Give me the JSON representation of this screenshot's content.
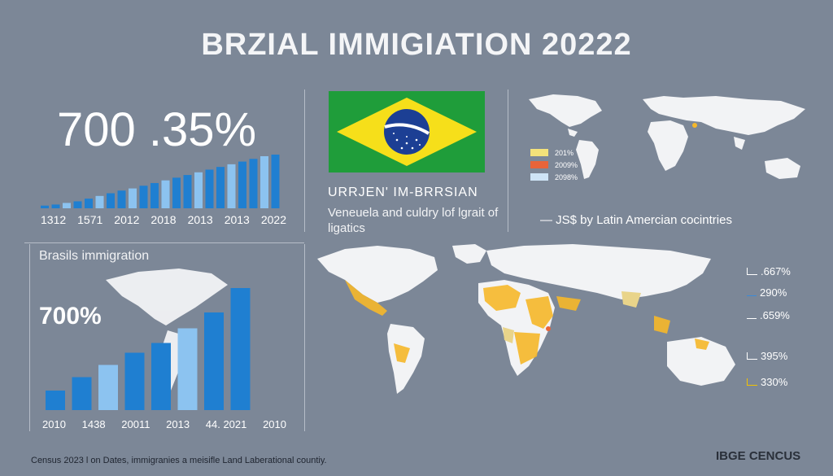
{
  "title": "BRZIAL IMMIGIATION 20222",
  "top_left": {
    "stat": "700 .35%",
    "x_labels": [
      "1312",
      "1571",
      "2012",
      "2018",
      "2013",
      "2013",
      "2022"
    ],
    "bar_levels": [
      0.05,
      0.07,
      0.1,
      0.13,
      0.18,
      0.23,
      0.28,
      0.33,
      0.37,
      0.42,
      0.47,
      0.52,
      0.57,
      0.62,
      0.67,
      0.72,
      0.77,
      0.82,
      0.87,
      0.92,
      0.97,
      1.0
    ]
  },
  "bottom_left": {
    "heading": "Brasils immigration",
    "stat": "700%",
    "x_labels": [
      "2010",
      "1438",
      "20011",
      "2013",
      "44. 2021",
      "2010"
    ],
    "bar_levels": [
      0.16,
      0.27,
      0.37,
      0.47,
      0.55,
      0.67,
      0.8,
      1.0
    ]
  },
  "flag_panel": {
    "caption_1": "URRJEN' IM-BRRSIAN",
    "caption_2": "Veneuela and culdry lof lgrait of ligatics"
  },
  "world_map_top": {
    "legend": [
      {
        "label": "201%",
        "color": "#f3e27a"
      },
      {
        "label": "2009%",
        "color": "#e8643a"
      },
      {
        "label": "2098%",
        "color": "#cfe4f6"
      }
    ],
    "caption": "JS$ by Latin Amercian cocintries"
  },
  "world_map_bottom": {
    "percentages": [
      ".667%",
      "290%",
      ".659%",
      "395%",
      "330%"
    ],
    "marker_colors": [
      "#ffffff",
      "#3a8ad8",
      "#ffffff",
      "#ffffff",
      "#f2c200"
    ]
  },
  "colors": {
    "background": "#7c8797",
    "bar_blue_dark": "#1f7fd1",
    "bar_blue_light": "#8cc3f0",
    "map_land": "#f2f3f5",
    "map_highlight": "#f6b82a"
  },
  "footer": "Census 2023 l on Dates, immigranies a meisifle Land Laberational countiy.",
  "source": "IBGE CENCUS"
}
